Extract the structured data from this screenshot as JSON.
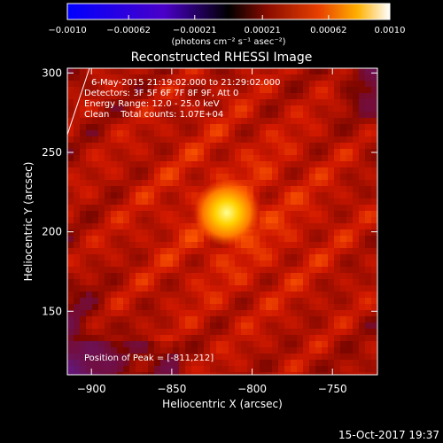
{
  "chart_data": {
    "type": "heatmap",
    "title": "Reconstructed RHESSI Image",
    "xlabel": "Heliocentric X (arcsec)",
    "ylabel": "Heliocentric Y (arcsec)",
    "xlim": [
      -915,
      -722
    ],
    "ylim": [
      110,
      303
    ],
    "x_ticks": [
      -900,
      -850,
      -800,
      -750
    ],
    "x_tick_labels": [
      "−900",
      "−850",
      "−800",
      "−750"
    ],
    "y_ticks": [
      150,
      200,
      250,
      300
    ],
    "y_tick_labels": [
      "150",
      "200",
      "250",
      "300"
    ],
    "colorbar": {
      "min": -0.001,
      "max": 0.001,
      "ticks": [
        -0.001,
        -0.00062,
        -0.00021,
        0.00021,
        0.00062,
        0.001
      ],
      "tick_labels": [
        "−0.0010",
        "−0.00062",
        "−0.00021",
        "0.00021",
        "0.00062",
        "0.0010"
      ],
      "units_label": "(photons cm⁻² s⁻¹ asec⁻²)",
      "colormap": [
        "#0000ff",
        "#5a00b4",
        "#000000",
        "#a01000",
        "#ff4000",
        "#ffb000",
        "#ffffff"
      ]
    },
    "peak": {
      "x": -811,
      "y": 212
    },
    "background_colors": {
      "positive": "#c01a00",
      "negative": "#5a209a"
    },
    "annotations": {
      "time_range": "6-May-2015 21:19:02.000 to 21:29:02.000",
      "detectors": "Detectors: 3F 5F 6F 7F 8F 9F, Att 0",
      "energy": "Energy Range: 12.0 - 25.0 keV",
      "clean": "Clean    Total counts: 1.07E+04",
      "peak_label": "Position of Peak = [-811,212]"
    }
  },
  "footer": {
    "timestamp": "15-Oct-2017 19:37"
  }
}
